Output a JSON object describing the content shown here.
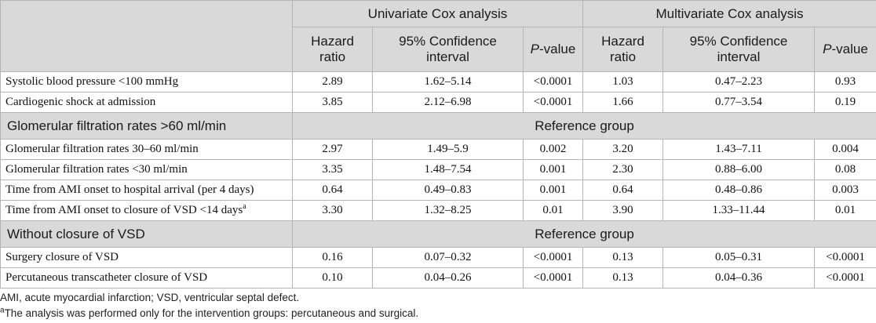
{
  "header": {
    "univariate": "Univariate Cox analysis",
    "multivariate": "Multivariate Cox analysis",
    "hazard_ratio": "Hazard ratio",
    "ci": "95% Confidence interval",
    "p_letter": "P",
    "p_suffix": "-value"
  },
  "rows": [
    {
      "label": "Systolic blood pressure <100 mmHg",
      "u_hr": "2.89",
      "u_ci": "1.62–5.14",
      "u_p": "<0.0001",
      "m_hr": "1.03",
      "m_ci": "0.47–2.23",
      "m_p": "0.93"
    },
    {
      "label": "Cardiogenic shock at admission",
      "u_hr": "3.85",
      "u_ci": "2.12–6.98",
      "u_p": "<0.0001",
      "m_hr": "1.66",
      "m_ci": "0.77–3.54",
      "m_p": "0.19"
    },
    {
      "section": true,
      "label": "Glomerular filtration rates >60 ml/min",
      "ref": "Reference group"
    },
    {
      "label": "Glomerular filtration rates 30–60 ml/min",
      "u_hr": "2.97",
      "u_ci": "1.49–5.9",
      "u_p": "0.002",
      "m_hr": "3.20",
      "m_ci": "1.43–7.11",
      "m_p": "0.004"
    },
    {
      "label": "Glomerular filtration rates <30 ml/min",
      "u_hr": "3.35",
      "u_ci": "1.48–7.54",
      "u_p": "0.001",
      "m_hr": "2.30",
      "m_ci": "0.88–6.00",
      "m_p": "0.08"
    },
    {
      "label": "Time from AMI onset to hospital arrival (per 4 days)",
      "u_hr": "0.64",
      "u_ci": "0.49–0.83",
      "u_p": "0.001",
      "m_hr": "0.64",
      "m_ci": "0.48–0.86",
      "m_p": "0.003"
    },
    {
      "label": "Time from AMI onset to closure of VSD <14 days",
      "sup": "a",
      "u_hr": "3.30",
      "u_ci": "1.32–8.25",
      "u_p": "0.01",
      "m_hr": "3.90",
      "m_ci": "1.33–11.44",
      "m_p": "0.01"
    },
    {
      "section": true,
      "label": "Without closure of VSD",
      "ref": "Reference group"
    },
    {
      "label": "Surgery closure of VSD",
      "u_hr": "0.16",
      "u_ci": "0.07–0.32",
      "u_p": "<0.0001",
      "m_hr": "0.13",
      "m_ci": "0.05–0.31",
      "m_p": "<0.0001"
    },
    {
      "label": "Percutaneous transcatheter closure of VSD",
      "u_hr": "0.10",
      "u_ci": "0.04–0.26",
      "u_p": "<0.0001",
      "m_hr": "0.13",
      "m_ci": "0.04–0.36",
      "m_p": "<0.0001"
    }
  ],
  "footnotes": {
    "abbrev": "AMI, acute myocardial infarction; VSD, ventricular septal defect.",
    "a_mark": "a",
    "a_text": "The analysis was performed only for the intervention groups: percutaneous and surgical."
  }
}
